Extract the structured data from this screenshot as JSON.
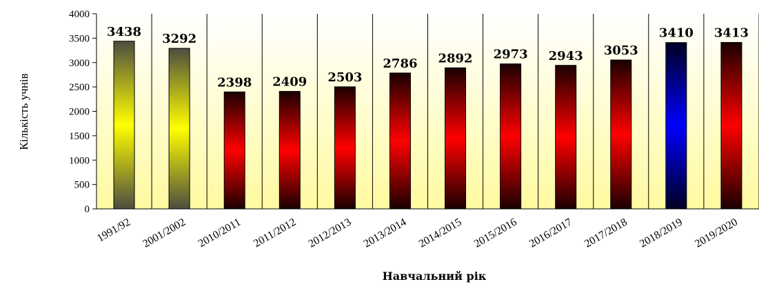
{
  "chart_data": {
    "type": "bar",
    "title": "",
    "xlabel": "Навчальний рік",
    "ylabel": "Кількість учнів",
    "ylim": [
      0,
      4000
    ],
    "yticks": [
      0,
      500,
      1000,
      1500,
      2000,
      2500,
      3000,
      3500,
      4000
    ],
    "grid": "vertical separators between categories",
    "legend": "none",
    "categories": [
      "1991/92",
      "2001/2002",
      "2010/2011",
      "2011/2012",
      "2012/2013",
      "2013/2014",
      "2014/2015",
      "2015/2016",
      "2016/2017",
      "2017/2018",
      "2018/2019",
      "2019/2020"
    ],
    "values": [
      3438,
      3292,
      2398,
      2409,
      2503,
      2786,
      2892,
      2973,
      2943,
      3053,
      3410,
      3413
    ],
    "bar_colors": [
      "yellow",
      "yellow",
      "red",
      "red",
      "red",
      "red",
      "red",
      "red",
      "red",
      "red",
      "blue",
      "red"
    ],
    "colors": {
      "yellow": "#ffff00",
      "yellow_edge": "#4d4d40",
      "red": "#ff0000",
      "red_edge": "#1a0000",
      "blue": "#0000ff",
      "blue_edge": "#000022",
      "background_top": "#ffffff",
      "background_bottom": "#fffaa0"
    }
  }
}
